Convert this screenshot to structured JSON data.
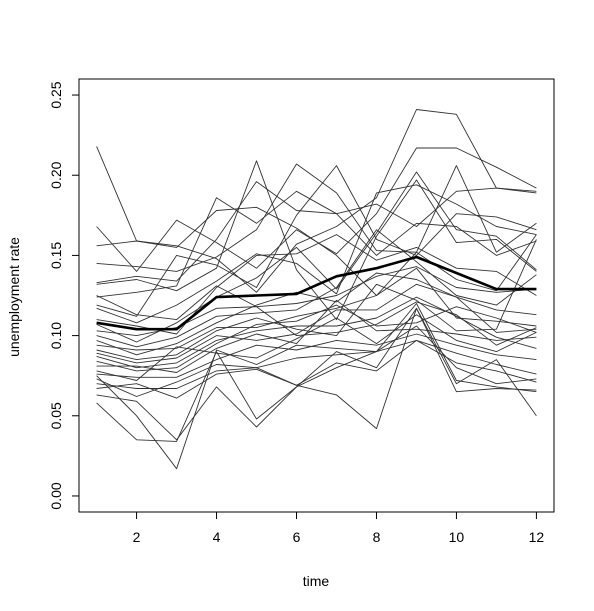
{
  "chart_data": {
    "type": "line",
    "title": "",
    "xlabel": "time",
    "ylabel": "unemployment rate",
    "xlim": [
      0.56,
      12.44
    ],
    "ylim": [
      -0.01,
      0.26
    ],
    "x_ticks": [
      2,
      4,
      6,
      8,
      10,
      12
    ],
    "x_tick_labels": [
      "2",
      "4",
      "6",
      "8",
      "10",
      "12"
    ],
    "y_ticks": [
      0.0,
      0.05,
      0.1,
      0.15,
      0.2,
      0.25
    ],
    "y_tick_labels": [
      "0.00",
      "0.05",
      "0.10",
      "0.15",
      "0.20",
      "0.25"
    ],
    "grid": false,
    "legend": "none",
    "x": [
      1,
      2,
      3,
      4,
      5,
      6,
      7,
      8,
      9,
      10,
      11,
      12
    ],
    "series": [
      {
        "style": "mean",
        "color": "#000000",
        "values": [
          0.108,
          0.104,
          0.104,
          0.124,
          0.125,
          0.126,
          0.137,
          0.142,
          0.149,
          0.139,
          0.129,
          0.129
        ]
      },
      {
        "style": "thin",
        "color": "#333333",
        "values": [
          0.218,
          0.159,
          0.155,
          0.178,
          0.18,
          0.167,
          0.15,
          0.125,
          0.152,
          0.135,
          0.128,
          0.163
        ]
      },
      {
        "style": "thin",
        "color": "#333333",
        "values": [
          0.156,
          0.159,
          0.156,
          0.148,
          0.127,
          0.157,
          0.168,
          0.186,
          0.241,
          0.238,
          0.192,
          0.19
        ]
      },
      {
        "style": "thin",
        "color": "#333333",
        "values": [
          0.168,
          0.14,
          0.172,
          0.158,
          0.142,
          0.166,
          0.151,
          0.176,
          0.217,
          0.217,
          0.205,
          0.192
        ]
      },
      {
        "style": "thin",
        "color": "#333333",
        "values": [
          0.145,
          0.143,
          0.14,
          0.149,
          0.166,
          0.207,
          0.189,
          0.153,
          0.152,
          0.206,
          0.152,
          0.17
        ]
      },
      {
        "style": "thin",
        "color": "#333333",
        "values": [
          0.133,
          0.137,
          0.134,
          0.16,
          0.196,
          0.178,
          0.176,
          0.182,
          0.168,
          0.19,
          0.192,
          0.189
        ]
      },
      {
        "style": "thin",
        "color": "#333333",
        "values": [
          0.132,
          0.135,
          0.128,
          0.142,
          0.209,
          0.141,
          0.11,
          0.162,
          0.197,
          0.158,
          0.16,
          0.14
        ]
      },
      {
        "style": "thin",
        "color": "#333333",
        "values": [
          0.124,
          0.127,
          0.131,
          0.186,
          0.17,
          0.19,
          0.176,
          0.15,
          0.17,
          0.168,
          0.15,
          0.159
        ]
      },
      {
        "style": "thin",
        "color": "#333333",
        "values": [
          0.119,
          0.112,
          0.15,
          0.144,
          0.13,
          0.175,
          0.206,
          0.16,
          0.15,
          0.176,
          0.174,
          0.166
        ]
      },
      {
        "style": "thin",
        "color": "#333333",
        "values": [
          0.117,
          0.108,
          0.119,
          0.134,
          0.151,
          0.145,
          0.126,
          0.189,
          0.194,
          0.182,
          0.168,
          0.163
        ]
      },
      {
        "style": "thin",
        "color": "#333333",
        "values": [
          0.11,
          0.106,
          0.101,
          0.13,
          0.15,
          0.151,
          0.163,
          0.147,
          0.155,
          0.142,
          0.14,
          0.125
        ]
      },
      {
        "style": "thin",
        "color": "#333333",
        "values": [
          0.107,
          0.096,
          0.108,
          0.124,
          0.136,
          0.155,
          0.129,
          0.164,
          0.202,
          0.166,
          0.162,
          0.141
        ]
      },
      {
        "style": "thin",
        "color": "#333333",
        "values": [
          0.103,
          0.1,
          0.105,
          0.117,
          0.118,
          0.12,
          0.125,
          0.137,
          0.143,
          0.13,
          0.127,
          0.129
        ]
      },
      {
        "style": "thin",
        "color": "#333333",
        "values": [
          0.1,
          0.093,
          0.099,
          0.112,
          0.114,
          0.116,
          0.13,
          0.166,
          0.146,
          0.125,
          0.119,
          0.138
        ]
      },
      {
        "style": "thin",
        "color": "#333333",
        "values": [
          0.097,
          0.088,
          0.095,
          0.108,
          0.119,
          0.127,
          0.121,
          0.139,
          0.135,
          0.124,
          0.116,
          0.113
        ]
      },
      {
        "style": "thin",
        "color": "#333333",
        "values": [
          0.094,
          0.091,
          0.092,
          0.105,
          0.105,
          0.112,
          0.117,
          0.125,
          0.142,
          0.111,
          0.109,
          0.106
        ]
      },
      {
        "style": "thin",
        "color": "#333333",
        "values": [
          0.091,
          0.085,
          0.088,
          0.103,
          0.111,
          0.104,
          0.1,
          0.132,
          0.122,
          0.103,
          0.104,
          0.16
        ]
      },
      {
        "style": "thin",
        "color": "#333333",
        "values": [
          0.089,
          0.083,
          0.086,
          0.1,
          0.097,
          0.101,
          0.116,
          0.116,
          0.132,
          0.124,
          0.102,
          0.104
        ]
      },
      {
        "style": "thin",
        "color": "#333333",
        "values": [
          0.087,
          0.08,
          0.083,
          0.097,
          0.103,
          0.106,
          0.106,
          0.111,
          0.124,
          0.112,
          0.099,
          0.092
        ]
      },
      {
        "style": "thin",
        "color": "#333333",
        "values": [
          0.084,
          0.078,
          0.08,
          0.095,
          0.107,
          0.109,
          0.119,
          0.106,
          0.108,
          0.118,
          0.111,
          0.102
        ]
      },
      {
        "style": "thin",
        "color": "#333333",
        "values": [
          0.081,
          0.081,
          0.077,
          0.092,
          0.101,
          0.095,
          0.122,
          0.103,
          0.104,
          0.101,
          0.097,
          0.099
        ]
      },
      {
        "style": "thin",
        "color": "#333333",
        "values": [
          0.078,
          0.072,
          0.093,
          0.089,
          0.086,
          0.098,
          0.111,
          0.095,
          0.113,
          0.097,
          0.09,
          0.102
        ]
      },
      {
        "style": "thin",
        "color": "#333333",
        "values": [
          0.076,
          0.074,
          0.074,
          0.085,
          0.094,
          0.091,
          0.097,
          0.094,
          0.101,
          0.094,
          0.088,
          0.085
        ]
      },
      {
        "style": "thin",
        "color": "#333333",
        "values": [
          0.073,
          0.062,
          0.071,
          0.082,
          0.08,
          0.086,
          0.088,
          0.09,
          0.097,
          0.089,
          0.082,
          0.076
        ]
      },
      {
        "style": "thin",
        "color": "#333333",
        "values": [
          0.07,
          0.067,
          0.067,
          0.078,
          0.08,
          0.069,
          0.083,
          0.078,
          0.097,
          0.083,
          0.078,
          0.071
        ]
      },
      {
        "style": "thin",
        "color": "#333333",
        "values": [
          0.067,
          0.07,
          0.061,
          0.076,
          0.079,
          0.069,
          0.063,
          0.042,
          0.117,
          0.065,
          0.067,
          0.066
        ]
      },
      {
        "style": "thin",
        "color": "#333333",
        "values": [
          0.063,
          0.059,
          0.035,
          0.068,
          0.043,
          0.068,
          0.08,
          0.09,
          0.106,
          0.08,
          0.07,
          0.073
        ]
      },
      {
        "style": "thin",
        "color": "#333333",
        "values": [
          0.058,
          0.035,
          0.034,
          0.09,
          0.048,
          0.068,
          0.09,
          0.08,
          0.117,
          0.07,
          0.085,
          0.05
        ]
      },
      {
        "style": "thin",
        "color": "#333333",
        "values": [
          0.075,
          0.05,
          0.017,
          0.091,
          0.082,
          0.094,
          0.092,
          0.09,
          0.12,
          0.072,
          0.068,
          0.065
        ]
      },
      {
        "style": "thin",
        "color": "#333333",
        "values": [
          0.125,
          0.113,
          0.11,
          0.131,
          0.118,
          0.1,
          0.102,
          0.107,
          0.121,
          0.113,
          0.094,
          0.105
        ]
      }
    ]
  }
}
